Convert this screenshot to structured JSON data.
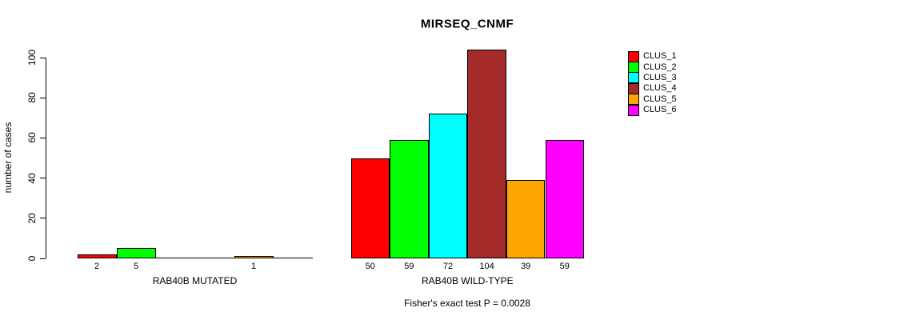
{
  "title": "MIRSEQ_CNMF",
  "footnote": "Fisher's exact test P = 0.0028",
  "chart_data": {
    "type": "bar",
    "title": "MIRSEQ_CNMF",
    "xlabel": "",
    "ylabel": "number of cases",
    "ylim": [
      0,
      100
    ],
    "yticks": [
      0,
      20,
      40,
      60,
      80,
      100
    ],
    "grid": false,
    "legend_position": "right",
    "bar_border_color": "#000000",
    "series": [
      {
        "name": "CLUS_1",
        "color": "#FF0000"
      },
      {
        "name": "CLUS_2",
        "color": "#00FF00"
      },
      {
        "name": "CLUS_3",
        "color": "#00FFFF"
      },
      {
        "name": "CLUS_4",
        "color": "#A52A2A"
      },
      {
        "name": "CLUS_5",
        "color": "#FFA500"
      },
      {
        "name": "CLUS_6",
        "color": "#FF00FF"
      }
    ],
    "groups": [
      {
        "label": "RAB40B MUTATED",
        "values": [
          2,
          5,
          0,
          0,
          1,
          0
        ],
        "bar_labels": [
          "2",
          "5",
          "",
          "",
          "1",
          ""
        ]
      },
      {
        "label": "RAB40B WILD-TYPE",
        "values": [
          50,
          59,
          72,
          104,
          39,
          59
        ],
        "bar_labels": [
          "50",
          "59",
          "72",
          "104",
          "39",
          "59"
        ]
      }
    ],
    "annotations": [
      "Fisher's exact test P = 0.0028"
    ]
  }
}
